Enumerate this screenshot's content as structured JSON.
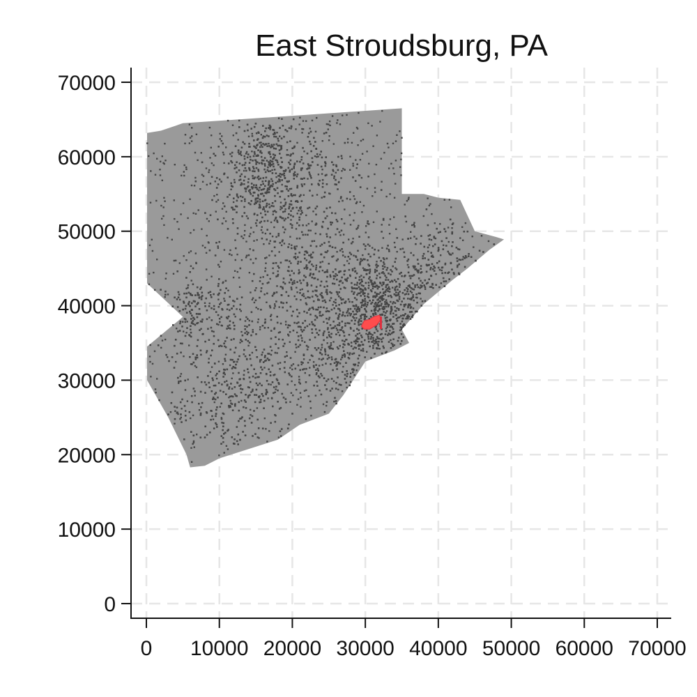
{
  "chart_data": {
    "type": "scatter",
    "title": "East Stroudsburg, PA",
    "xlabel": "",
    "ylabel": "",
    "xlim": [
      0,
      70000
    ],
    "ylim": [
      0,
      70000
    ],
    "x_ticks": [
      0,
      10000,
      20000,
      30000,
      40000,
      50000,
      60000,
      70000
    ],
    "y_ticks": [
      0,
      10000,
      20000,
      30000,
      40000,
      50000,
      60000,
      70000
    ],
    "x_tick_labels": [
      "0",
      "10000",
      "20000",
      "30000",
      "40000",
      "50000",
      "60000",
      "70000"
    ],
    "y_tick_labels": [
      "0",
      "10000",
      "20000",
      "30000",
      "40000",
      "50000",
      "60000",
      "70000"
    ],
    "grid": true,
    "grid_style": "dashed",
    "region_boundary": [
      [
        100,
        63200
      ],
      [
        2000,
        63500
      ],
      [
        5000,
        64500
      ],
      [
        35000,
        66500
      ],
      [
        35000,
        55000
      ],
      [
        38000,
        55000
      ],
      [
        40000,
        54500
      ],
      [
        43000,
        54200
      ],
      [
        45000,
        50000
      ],
      [
        48000,
        49200
      ],
      [
        49000,
        48900
      ],
      [
        47000,
        47500
      ],
      [
        44000,
        45000
      ],
      [
        42000,
        43500
      ],
      [
        38000,
        40200
      ],
      [
        35000,
        36800
      ],
      [
        36000,
        35000
      ],
      [
        34000,
        34000
      ],
      [
        30000,
        32500
      ],
      [
        27000,
        28000
      ],
      [
        25000,
        25500
      ],
      [
        21000,
        24000
      ],
      [
        18000,
        22000
      ],
      [
        10000,
        19500
      ],
      [
        8000,
        18500
      ],
      [
        6000,
        18300
      ],
      [
        5500,
        20000
      ],
      [
        3000,
        25000
      ],
      [
        100,
        30000
      ],
      [
        100,
        34500
      ],
      [
        5000,
        38500
      ],
      [
        100,
        43000
      ]
    ],
    "highlight_region": {
      "label": "East Stroudsburg",
      "color": "#ff4d4d",
      "center": [
        30800,
        37600
      ]
    },
    "point_clusters": [
      {
        "center": [
          32000,
          39500
        ],
        "spread": 3500,
        "count": 600
      },
      {
        "center": [
          15500,
          56000
        ],
        "spread": 3000,
        "count": 260
      },
      {
        "center": [
          16500,
          60500
        ],
        "spread": 2200,
        "count": 150
      },
      {
        "center": [
          7000,
          39000
        ],
        "spread": 2500,
        "count": 160
      },
      {
        "center": [
          23000,
          41000
        ],
        "spread": 4500,
        "count": 280
      },
      {
        "center": [
          14000,
          31000
        ],
        "spread": 4000,
        "count": 220
      },
      {
        "center": [
          24000,
          58000
        ],
        "spread": 3000,
        "count": 110
      },
      {
        "center": [
          40000,
          45000
        ],
        "spread": 3200,
        "count": 150
      },
      {
        "center": [
          20000,
          48000
        ],
        "spread": 5000,
        "count": 200
      },
      {
        "center": [
          10000,
          26000
        ],
        "spread": 3500,
        "count": 120
      },
      {
        "center": [
          27000,
          33000
        ],
        "spread": 3000,
        "count": 130
      }
    ],
    "colors": {
      "region": "#9a9a9a",
      "points": "#454545",
      "grid": "#e6e6e6",
      "axis": "#111111"
    }
  }
}
